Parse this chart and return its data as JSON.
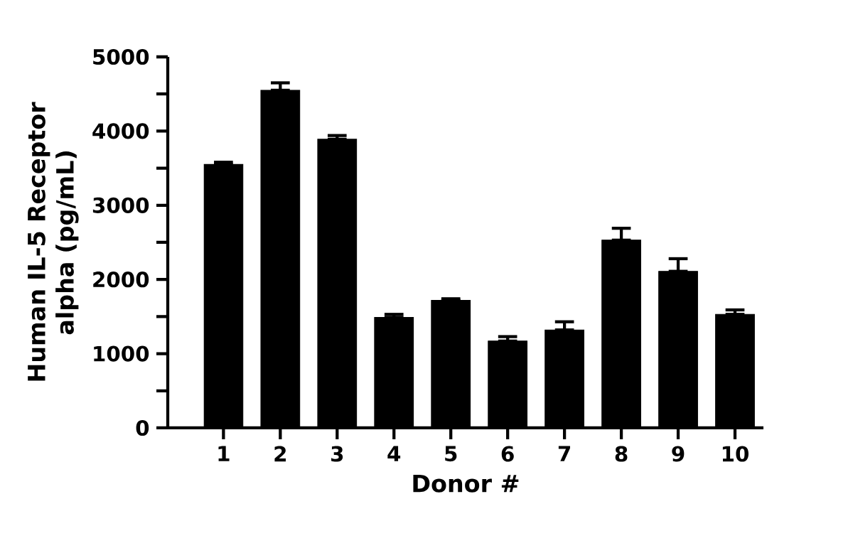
{
  "chart_data": {
    "type": "bar",
    "xlabel": "Donor #",
    "ylabel": "Human IL-5 Receptor alpha (pg/mL)",
    "categories": [
      "1",
      "2",
      "3",
      "4",
      "5",
      "6",
      "7",
      "8",
      "9",
      "10"
    ],
    "values": [
      3550,
      4550,
      3890,
      1490,
      1720,
      1170,
      1320,
      2530,
      2110,
      1530
    ],
    "errors": [
      [
        3550,
        3580
      ],
      [
        4550,
        4650
      ],
      [
        3890,
        3940
      ],
      [
        1490,
        1530
      ],
      [
        1720,
        1740
      ],
      [
        1170,
        1230
      ],
      [
        1320,
        1430
      ],
      [
        2530,
        2690
      ],
      [
        2110,
        2280
      ],
      [
        1530,
        1590
      ]
    ],
    "color": "#000000",
    "ylim": [
      0,
      5000
    ],
    "yticks": [
      0,
      {
        "value": 500,
        "label": null
      },
      1000,
      {
        "value": 1500,
        "label": null
      },
      2000,
      {
        "value": 2500,
        "label": null
      },
      3000,
      {
        "value": 3500,
        "label": null
      },
      4000,
      {
        "value": 4500,
        "label": null
      },
      5000
    ],
    "grid": false
  }
}
